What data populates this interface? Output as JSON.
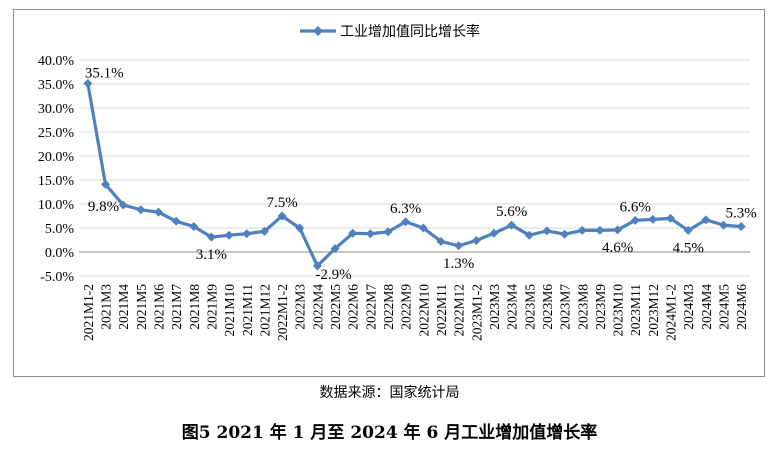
{
  "chart_data": {
    "type": "line",
    "title": "",
    "xlabel": "",
    "ylabel": "",
    "ylim": [
      -5,
      40
    ],
    "ytick_values": [
      -5,
      0,
      5,
      10,
      15,
      20,
      25,
      30,
      35,
      40
    ],
    "ytick_labels": [
      "-5.0%",
      "0.0%",
      "5.0%",
      "10.0%",
      "15.0%",
      "20.0%",
      "25.0%",
      "30.0%",
      "35.0%",
      "40.0%"
    ],
    "grid": true,
    "legend_position": "top-center",
    "categories": [
      "2021M1-2",
      "2021M3",
      "2021M4",
      "2021M5",
      "2021M6",
      "2021M7",
      "2021M8",
      "2021M9",
      "2021M10",
      "2021M11",
      "2021M12",
      "2022M1-2",
      "2022M3",
      "2022M4",
      "2022M5",
      "2022M6",
      "2022M7",
      "2022M8",
      "2022M9",
      "2022M10",
      "2022M11",
      "2022M12",
      "2023M1-2",
      "2023M3",
      "2023M4",
      "2023M5",
      "2023M6",
      "2023M7",
      "2023M8",
      "2023M9",
      "2023M10",
      "2023M11",
      "2023M12",
      "2024M1-2",
      "2024M3",
      "2024M4",
      "2024M5",
      "2024M6"
    ],
    "series": [
      {
        "name": "工业增加值同比增长率",
        "color": "#4f81bd",
        "values": [
          35.1,
          14.1,
          9.8,
          8.8,
          8.3,
          6.4,
          5.3,
          3.1,
          3.5,
          3.8,
          4.3,
          7.5,
          5.0,
          -2.9,
          0.7,
          3.9,
          3.8,
          4.2,
          6.3,
          5.0,
          2.2,
          1.3,
          2.4,
          3.9,
          5.6,
          3.5,
          4.4,
          3.7,
          4.5,
          4.5,
          4.6,
          6.6,
          6.8,
          7.0,
          4.5,
          6.7,
          5.6,
          5.3
        ]
      }
    ],
    "annotations": [
      {
        "index": 0,
        "text": "35.1%",
        "position": "right"
      },
      {
        "index": 2,
        "text": "9.8%",
        "position": "left"
      },
      {
        "index": 7,
        "text": "3.1%",
        "position": "below"
      },
      {
        "index": 11,
        "text": "7.5%",
        "position": "above"
      },
      {
        "index": 13,
        "text": "-2.9%",
        "position": "below-right"
      },
      {
        "index": 18,
        "text": "6.3%",
        "position": "above"
      },
      {
        "index": 21,
        "text": "1.3%",
        "position": "below"
      },
      {
        "index": 24,
        "text": "5.6%",
        "position": "above"
      },
      {
        "index": 30,
        "text": "4.6%",
        "position": "below"
      },
      {
        "index": 31,
        "text": "6.6%",
        "position": "above"
      },
      {
        "index": 34,
        "text": "4.5%",
        "position": "below"
      },
      {
        "index": 37,
        "text": "5.3%",
        "position": "above"
      }
    ]
  },
  "source_note": "数据来源：国家统计局",
  "figure_caption": "图5 2021 年 1 月至 2024 年 6 月工业增加值增长率"
}
